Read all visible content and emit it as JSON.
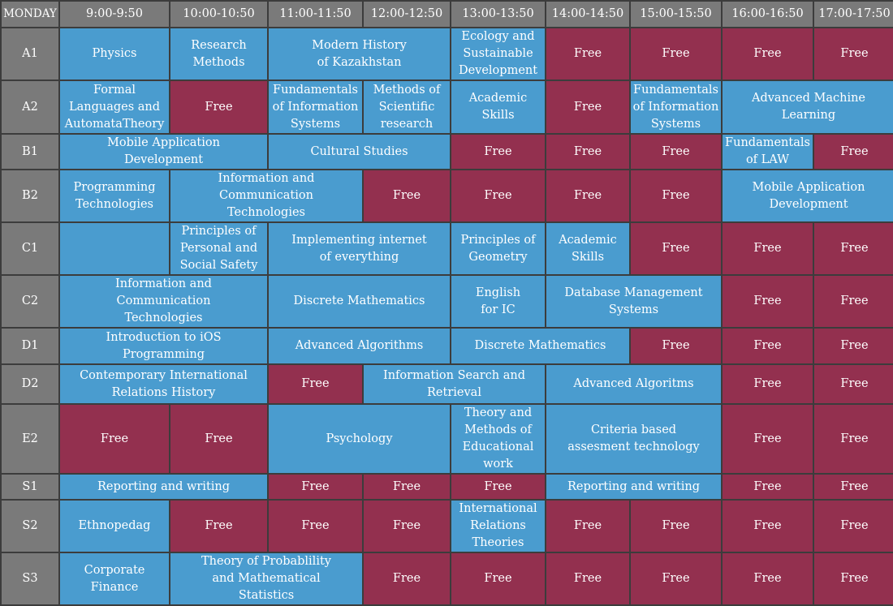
{
  "day": "MONDAY",
  "time_slots": [
    "9:00-9:50",
    "10:00-10:50",
    "11:00-11:50",
    "12:00-12:50",
    "13:00-13:50",
    "14:00-14:50",
    "15:00-15:50",
    "16:00-16:50",
    "17:00-17:50"
  ],
  "colors": {
    "lesson": "#4a9ccf",
    "free": "#93304f",
    "header": "#7a7a7a",
    "grid": "#3c3c3c"
  },
  "rows": [
    {
      "room": "A1",
      "cells": [
        {
          "text": "Physics",
          "span": 1,
          "type": "lesson"
        },
        {
          "text": "Research\nMethods",
          "span": 1,
          "type": "lesson"
        },
        {
          "text": "Modern History\nof Kazakhstan",
          "span": 2,
          "type": "lesson"
        },
        {
          "text": "Ecology and\nSustainable\nDevelopment",
          "span": 1,
          "type": "lesson"
        },
        {
          "text": "Free",
          "span": 1,
          "type": "free"
        },
        {
          "text": "Free",
          "span": 1,
          "type": "free"
        },
        {
          "text": "Free",
          "span": 1,
          "type": "free"
        },
        {
          "text": "Free",
          "span": 1,
          "type": "free"
        }
      ]
    },
    {
      "room": "A2",
      "cells": [
        {
          "text": "Formal\nLanguages and\nAutomataTheory",
          "span": 1,
          "type": "lesson"
        },
        {
          "text": "Free",
          "span": 1,
          "type": "free"
        },
        {
          "text": "Fundamentals\nof Information\nSystems",
          "span": 1,
          "type": "lesson"
        },
        {
          "text": "Methods of\nScientific\nresearch",
          "span": 1,
          "type": "lesson"
        },
        {
          "text": "Academic\nSkills",
          "span": 1,
          "type": "lesson"
        },
        {
          "text": "Free",
          "span": 1,
          "type": "free"
        },
        {
          "text": "Fundamentals\nof Information\nSystems",
          "span": 1,
          "type": "lesson"
        },
        {
          "text": "Advanced Machine\nLearning",
          "span": 2,
          "type": "lesson"
        }
      ]
    },
    {
      "room": "B1",
      "cells": [
        {
          "text": "Mobile Application\nDevelopment",
          "span": 2,
          "type": "lesson"
        },
        {
          "text": "Cultural Studies",
          "span": 2,
          "type": "lesson"
        },
        {
          "text": "Free",
          "span": 1,
          "type": "free"
        },
        {
          "text": "Free",
          "span": 1,
          "type": "free"
        },
        {
          "text": "Free",
          "span": 1,
          "type": "free"
        },
        {
          "text": "Fundamentals\nof LAW",
          "span": 1,
          "type": "lesson"
        },
        {
          "text": "Free",
          "span": 1,
          "type": "free"
        }
      ]
    },
    {
      "room": "B2",
      "cells": [
        {
          "text": "Programming\nTechnologies",
          "span": 1,
          "type": "lesson"
        },
        {
          "text": "Information and\nCommunication\nTechnologies",
          "span": 2,
          "type": "lesson"
        },
        {
          "text": "Free",
          "span": 1,
          "type": "free"
        },
        {
          "text": "Free",
          "span": 1,
          "type": "free"
        },
        {
          "text": "Free",
          "span": 1,
          "type": "free"
        },
        {
          "text": "Free",
          "span": 1,
          "type": "free"
        },
        {
          "text": "Mobile Application\nDevelopment",
          "span": 2,
          "type": "lesson"
        }
      ]
    },
    {
      "room": "C1",
      "cells": [
        {
          "text": "",
          "span": 1,
          "type": "lesson"
        },
        {
          "text": "Principles of\nPersonal and\nSocial Safety",
          "span": 1,
          "type": "lesson"
        },
        {
          "text": "Implementing internet\nof everything",
          "span": 2,
          "type": "lesson"
        },
        {
          "text": "Principles of\nGeometry",
          "span": 1,
          "type": "lesson"
        },
        {
          "text": "Academic\nSkills",
          "span": 1,
          "type": "lesson"
        },
        {
          "text": "Free",
          "span": 1,
          "type": "free"
        },
        {
          "text": "Free",
          "span": 1,
          "type": "free"
        },
        {
          "text": "Free",
          "span": 1,
          "type": "free"
        }
      ]
    },
    {
      "room": "C2",
      "cells": [
        {
          "text": "Information and\nCommunication\nTechnologies",
          "span": 2,
          "type": "lesson"
        },
        {
          "text": "Discrete Mathematics",
          "span": 2,
          "type": "lesson"
        },
        {
          "text": "English\nfor IC",
          "span": 1,
          "type": "lesson"
        },
        {
          "text": "Database Management\nSystems",
          "span": 2,
          "type": "lesson"
        },
        {
          "text": "Free",
          "span": 1,
          "type": "free"
        },
        {
          "text": "Free",
          "span": 1,
          "type": "free"
        }
      ]
    },
    {
      "room": "D1",
      "cells": [
        {
          "text": "Introduction to iOS\nProgramming",
          "span": 2,
          "type": "lesson"
        },
        {
          "text": "Advanced Algorithms",
          "span": 2,
          "type": "lesson"
        },
        {
          "text": "Discrete Mathematics",
          "span": 2,
          "type": "lesson"
        },
        {
          "text": "Free",
          "span": 1,
          "type": "free"
        },
        {
          "text": "Free",
          "span": 1,
          "type": "free"
        },
        {
          "text": "Free",
          "span": 1,
          "type": "free"
        }
      ]
    },
    {
      "room": "D2",
      "cells": [
        {
          "text": "Contemporary International\nRelations History",
          "span": 2,
          "type": "lesson"
        },
        {
          "text": "Free",
          "span": 1,
          "type": "free"
        },
        {
          "text": "Information Search and\nRetrieval",
          "span": 2,
          "type": "lesson"
        },
        {
          "text": "Advanced Algoritms",
          "span": 2,
          "type": "lesson"
        },
        {
          "text": "Free",
          "span": 1,
          "type": "free"
        },
        {
          "text": "Free",
          "span": 1,
          "type": "free"
        }
      ]
    },
    {
      "room": "E2",
      "cells": [
        {
          "text": "Free",
          "span": 1,
          "type": "free"
        },
        {
          "text": "Free",
          "span": 1,
          "type": "free"
        },
        {
          "text": "Psychology",
          "span": 2,
          "type": "lesson"
        },
        {
          "text": "Theory and\nMethods of\nEducational\nwork",
          "span": 1,
          "type": "lesson"
        },
        {
          "text": "Criteria based\nassesment technology",
          "span": 2,
          "type": "lesson"
        },
        {
          "text": "Free",
          "span": 1,
          "type": "free"
        },
        {
          "text": "Free",
          "span": 1,
          "type": "free"
        }
      ]
    },
    {
      "room": "S1",
      "cells": [
        {
          "text": "Reporting and writing",
          "span": 2,
          "type": "lesson"
        },
        {
          "text": "Free",
          "span": 1,
          "type": "free"
        },
        {
          "text": "Free",
          "span": 1,
          "type": "free"
        },
        {
          "text": "Free",
          "span": 1,
          "type": "free"
        },
        {
          "text": "Reporting and writing",
          "span": 2,
          "type": "lesson"
        },
        {
          "text": "Free",
          "span": 1,
          "type": "free"
        },
        {
          "text": "Free",
          "span": 1,
          "type": "free"
        }
      ]
    },
    {
      "room": "S2",
      "cells": [
        {
          "text": "Ethnopedag",
          "span": 1,
          "type": "lesson"
        },
        {
          "text": "Free",
          "span": 1,
          "type": "free"
        },
        {
          "text": "Free",
          "span": 1,
          "type": "free"
        },
        {
          "text": "Free",
          "span": 1,
          "type": "free"
        },
        {
          "text": "International\nRelations\nTheories",
          "span": 1,
          "type": "lesson"
        },
        {
          "text": "Free",
          "span": 1,
          "type": "free"
        },
        {
          "text": "Free",
          "span": 1,
          "type": "free"
        },
        {
          "text": "Free",
          "span": 1,
          "type": "free"
        },
        {
          "text": "Free",
          "span": 1,
          "type": "free"
        }
      ]
    },
    {
      "room": "S3",
      "cells": [
        {
          "text": "Corporate\nFinance",
          "span": 1,
          "type": "lesson"
        },
        {
          "text": "Theory of Probablility\nand Mathematical\nStatistics",
          "span": 2,
          "type": "lesson"
        },
        {
          "text": "Free",
          "span": 1,
          "type": "free"
        },
        {
          "text": "Free",
          "span": 1,
          "type": "free"
        },
        {
          "text": "Free",
          "span": 1,
          "type": "free"
        },
        {
          "text": "Free",
          "span": 1,
          "type": "free"
        },
        {
          "text": "Free",
          "span": 1,
          "type": "free"
        },
        {
          "text": "Free",
          "span": 1,
          "type": "free"
        }
      ]
    }
  ]
}
